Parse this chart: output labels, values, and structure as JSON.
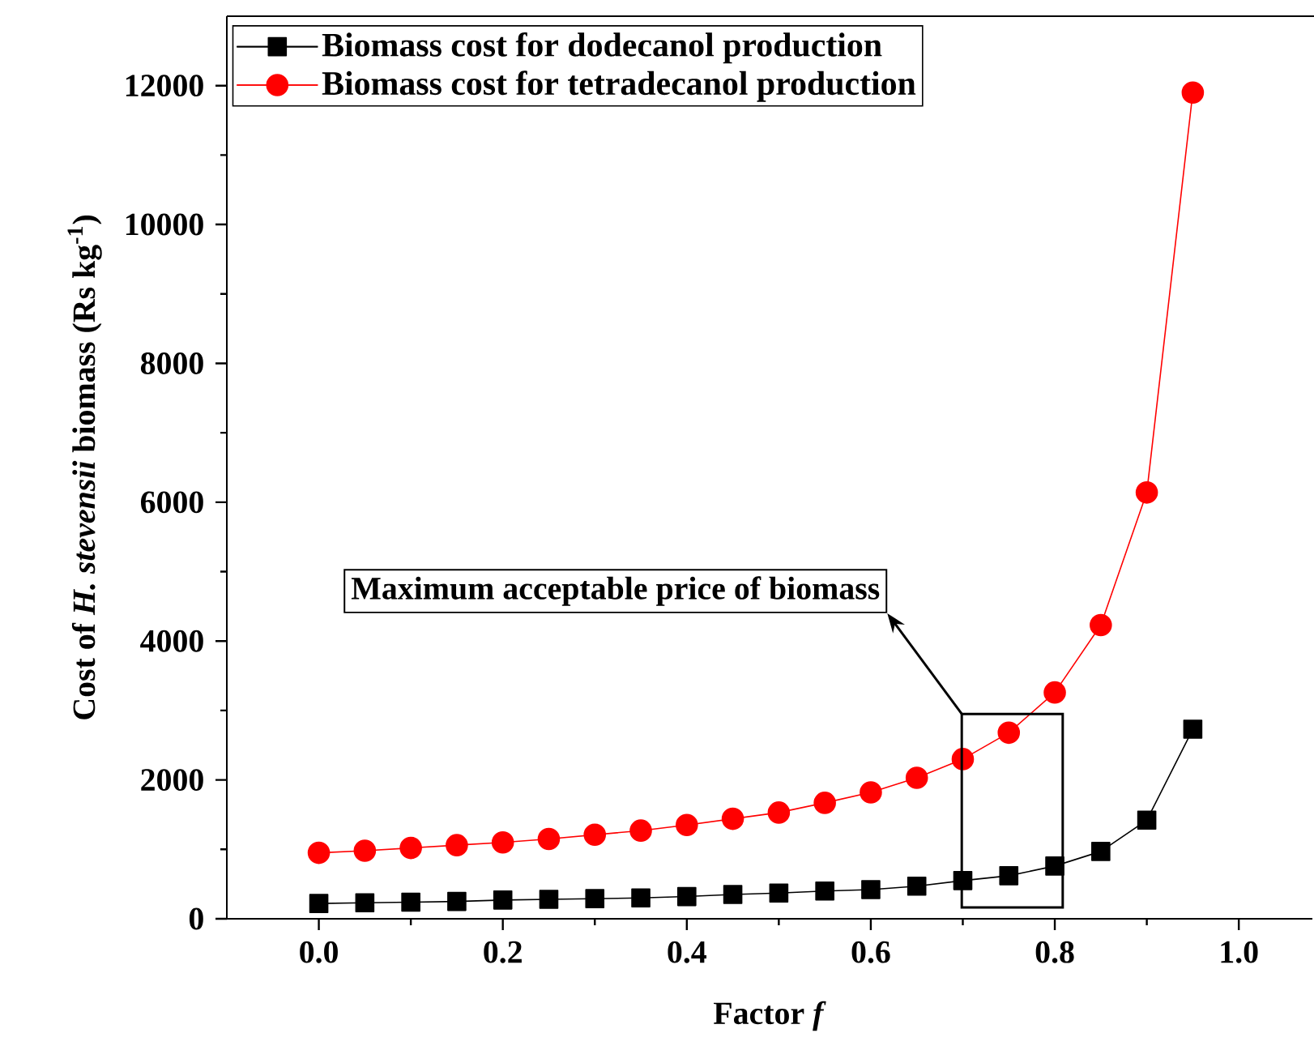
{
  "chart_data": {
    "type": "line",
    "xlabel": "Factor *f*",
    "ylabel": "Cost of *H. stevensii* biomass (Rs kg$^{-1}$)",
    "x": [
      0,
      0.05,
      0.1,
      0.15,
      0.2,
      0.25,
      0.3,
      0.35,
      0.4,
      0.45,
      0.5,
      0.55,
      0.6,
      0.65,
      0.7,
      0.75,
      0.8,
      0.85,
      0.9,
      0.95
    ],
    "series": [
      {
        "name": "Biomass cost for dodecanol production",
        "color": "#000000",
        "marker": "square",
        "values": [
          220,
          230,
          240,
          250,
          270,
          280,
          290,
          300,
          320,
          350,
          370,
          400,
          420,
          470,
          550,
          620,
          760,
          970,
          1420,
          2730
        ]
      },
      {
        "name": "Biomass cost for tetradecanol production",
        "color": "#ff0000",
        "marker": "circle",
        "values": [
          950,
          980,
          1020,
          1060,
          1100,
          1150,
          1210,
          1270,
          1350,
          1440,
          1530,
          1670,
          1820,
          2030,
          2300,
          2680,
          3260,
          4230,
          6140,
          11900
        ]
      }
    ],
    "xlim": [
      -0.1,
      1.08
    ],
    "ylim": [
      0,
      13000
    ],
    "xticks": [
      {
        "value": 0,
        "label": "0.0"
      },
      {
        "value": 0.2,
        "label": "0.2"
      },
      {
        "value": 0.4,
        "label": "0.4"
      },
      {
        "value": 0.6,
        "label": "0.6"
      },
      {
        "value": 0.8,
        "label": "0.8"
      },
      {
        "value": 1,
        "label": "1.0"
      }
    ],
    "yticks": [
      0,
      2000,
      4000,
      6000,
      8000,
      10000,
      12000
    ],
    "legend": "top left",
    "grid": false,
    "annotations": [
      "Maximum acceptable price of biomass"
    ]
  }
}
